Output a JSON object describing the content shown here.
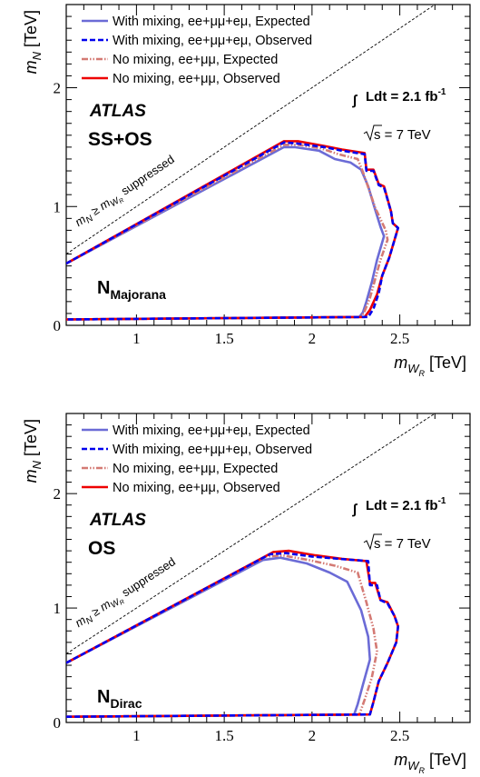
{
  "chart_data": [
    {
      "type": "line",
      "panel": "top",
      "xlabel": "m_{W_R} [TeV]",
      "ylabel": "m_N [TeV]",
      "xlim": [
        0.6,
        2.9
      ],
      "ylim": [
        0.0,
        2.7
      ],
      "xticks": [
        "1",
        "1.5",
        "2",
        "2.5"
      ],
      "yticks": [
        "0",
        "1",
        "2"
      ],
      "experiment": "ATLAS",
      "channel": "SS+OS",
      "lumi_text": "Ldt = 2.1 fb",
      "lumi_sup": "-1",
      "energy_text": "s = 7 TeV",
      "neutrino_main": "N",
      "neutrino_sub": "Majorana",
      "diagonal_label": "m",
      "diagonal_suffix": " suppressed",
      "series": [
        {
          "name": "With mixing, ee+μμ+eμ, Expected",
          "color": "#6b6bd6",
          "dash": "solid",
          "x": [
            0.6,
            1.84,
            1.9,
            2.04,
            2.13,
            2.22,
            2.28,
            2.32,
            2.35,
            2.39,
            2.41,
            2.37,
            2.34,
            2.31,
            2.29,
            2.27,
            0.6
          ],
          "y": [
            0.52,
            1.5,
            1.5,
            1.47,
            1.4,
            1.37,
            1.31,
            1.17,
            1.02,
            0.83,
            0.75,
            0.55,
            0.36,
            0.2,
            0.11,
            0.07,
            0.05
          ]
        },
        {
          "name": "With mixing, ee+μμ+eμ, Observed",
          "color": "#0000ee",
          "dash": "dashed",
          "x": [
            0.6,
            1.84,
            1.92,
            2.07,
            2.17,
            2.3,
            2.31,
            2.35,
            2.38,
            2.41,
            2.45,
            2.46,
            2.49,
            2.44,
            2.4,
            2.38,
            2.35,
            2.32,
            0.6
          ],
          "y": [
            0.52,
            1.54,
            1.53,
            1.5,
            1.47,
            1.44,
            1.3,
            1.3,
            1.18,
            1.16,
            0.96,
            0.86,
            0.82,
            0.57,
            0.42,
            0.27,
            0.14,
            0.07,
            0.05
          ]
        },
        {
          "name": "No mixing, ee+μμ, Expected",
          "color": "#d47a74",
          "dash": "dashdotdot",
          "x": [
            0.6,
            1.84,
            1.92,
            2.05,
            2.15,
            2.26,
            2.29,
            2.33,
            2.36,
            2.42,
            2.43,
            2.39,
            2.36,
            2.33,
            2.3,
            2.28,
            0.6
          ],
          "y": [
            0.52,
            1.52,
            1.52,
            1.49,
            1.44,
            1.4,
            1.29,
            1.12,
            0.99,
            0.8,
            0.72,
            0.55,
            0.39,
            0.23,
            0.12,
            0.07,
            0.05
          ]
        },
        {
          "name": "No mixing, ee+μμ, Observed",
          "color": "#ee0000",
          "dash": "solid",
          "x": [
            0.6,
            1.84,
            1.92,
            2.07,
            2.17,
            2.3,
            2.31,
            2.35,
            2.38,
            2.41,
            2.45,
            2.46,
            2.49,
            2.44,
            2.4,
            2.37,
            2.33,
            2.3,
            0.6
          ],
          "y": [
            0.52,
            1.55,
            1.55,
            1.51,
            1.48,
            1.45,
            1.31,
            1.31,
            1.19,
            1.17,
            0.96,
            0.86,
            0.82,
            0.57,
            0.42,
            0.26,
            0.13,
            0.07,
            0.05
          ]
        }
      ]
    },
    {
      "type": "line",
      "panel": "bottom",
      "xlabel": "m_{W_R} [TeV]",
      "ylabel": "m_N [TeV]",
      "xlim": [
        0.6,
        2.9
      ],
      "ylim": [
        0.0,
        2.7
      ],
      "xticks": [
        "1",
        "1.5",
        "2",
        "2.5"
      ],
      "yticks": [
        "0",
        "1",
        "2"
      ],
      "experiment": "ATLAS",
      "channel": "OS",
      "lumi_text": "Ldt = 2.1 fb",
      "lumi_sup": "-1",
      "energy_text": "s = 7 TeV",
      "neutrino_main": "N",
      "neutrino_sub": "Dirac",
      "diagonal_label": "m",
      "diagonal_suffix": " suppressed",
      "series": [
        {
          "name": "With mixing, ee+μμ+eμ, Expected",
          "color": "#6b6bd6",
          "dash": "solid",
          "x": [
            0.6,
            1.72,
            1.82,
            1.97,
            2.1,
            2.2,
            2.28,
            2.32,
            2.33,
            2.29,
            2.26,
            2.24,
            0.6
          ],
          "y": [
            0.52,
            1.42,
            1.44,
            1.39,
            1.31,
            1.23,
            0.98,
            0.75,
            0.55,
            0.33,
            0.16,
            0.07,
            0.05
          ]
        },
        {
          "name": "With mixing, ee+μμ+eμ, Observed",
          "color": "#0000ee",
          "dash": "dashed",
          "x": [
            0.6,
            1.76,
            1.85,
            2.0,
            2.15,
            2.32,
            2.33,
            2.37,
            2.39,
            2.43,
            2.47,
            2.49,
            2.48,
            2.43,
            2.38,
            2.35,
            2.33,
            0.6
          ],
          "y": [
            0.52,
            1.47,
            1.48,
            1.45,
            1.43,
            1.41,
            1.2,
            1.2,
            1.07,
            1.04,
            0.93,
            0.84,
            0.7,
            0.52,
            0.36,
            0.18,
            0.07,
            0.05
          ]
        },
        {
          "name": "No mixing, ee+μμ, Expected",
          "color": "#d47a74",
          "dash": "dashdotdot",
          "x": [
            0.6,
            1.74,
            1.83,
            1.98,
            2.13,
            2.26,
            2.31,
            2.35,
            2.37,
            2.34,
            2.3,
            2.27,
            0.6
          ],
          "y": [
            0.52,
            1.45,
            1.46,
            1.42,
            1.37,
            1.31,
            1.05,
            0.82,
            0.62,
            0.39,
            0.2,
            0.07,
            0.05
          ]
        },
        {
          "name": "No mixing, ee+μμ, Observed",
          "color": "#ee0000",
          "dash": "solid",
          "x": [
            0.6,
            1.78,
            1.87,
            2.02,
            2.17,
            2.31,
            2.33,
            2.36,
            2.39,
            2.43,
            2.47,
            2.49,
            2.48,
            2.43,
            2.38,
            2.35,
            2.33,
            0.6
          ],
          "y": [
            0.52,
            1.49,
            1.5,
            1.46,
            1.43,
            1.41,
            1.22,
            1.22,
            1.07,
            1.05,
            0.93,
            0.84,
            0.7,
            0.52,
            0.36,
            0.18,
            0.07,
            0.05
          ]
        }
      ]
    }
  ]
}
